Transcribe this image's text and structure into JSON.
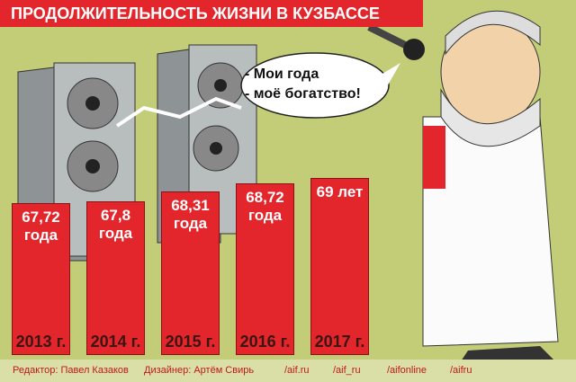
{
  "chart_data": {
    "type": "bar",
    "title": "ПРОДОЛЖИТЕЛЬНОСТЬ ЖИЗНИ В КУЗБАССЕ",
    "categories": [
      "2013 г.",
      "2014 г.",
      "2015 г.",
      "2016 г.",
      "2017 г."
    ],
    "values": [
      67.72,
      67.8,
      68.31,
      68.72,
      69
    ],
    "value_labels": [
      "67,72 года",
      "67,8 года",
      "68,31 года",
      "68,72 года",
      "69 лет"
    ],
    "color": "#e3262b",
    "ylim": [
      60,
      70
    ],
    "annotations": [
      "- Мои года",
      "- моё богатство!"
    ],
    "credits": [
      "Редактор: Павел Казаков",
      "Дизайнер: Артём Свирь",
      "/aif.ru",
      "/aif_ru",
      "/aifonline",
      "/aifru"
    ]
  }
}
